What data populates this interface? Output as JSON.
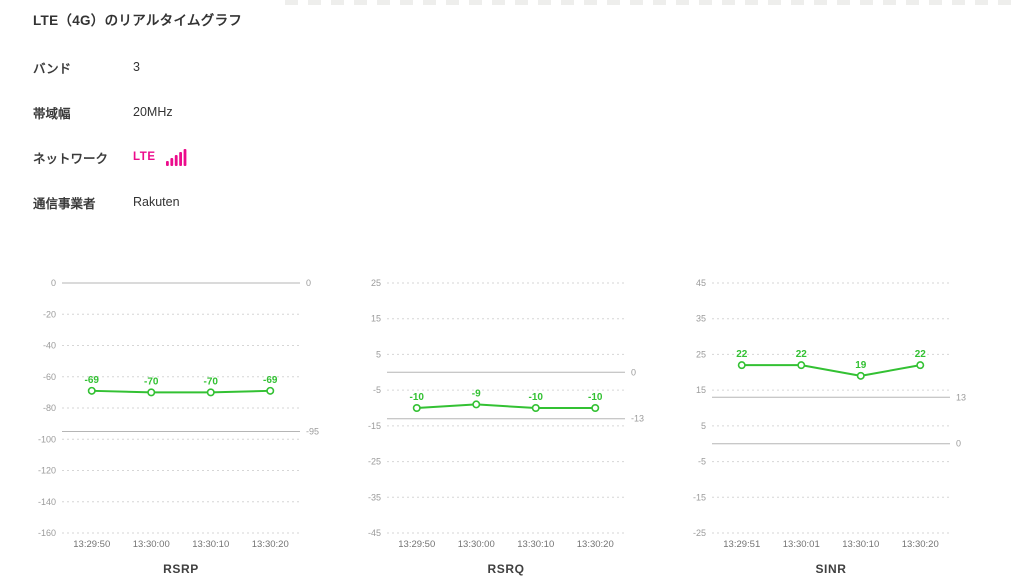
{
  "page": {
    "title": "LTE（4G）のリアルタイムグラフ"
  },
  "info": {
    "rows": [
      {
        "label": "バンド",
        "value": "3"
      },
      {
        "label": "帯域幅",
        "value": "20MHz"
      },
      {
        "label": "ネットワーク",
        "value": "LTE",
        "accent": true,
        "icon": "signal-bars-icon"
      },
      {
        "label": "通信事業者",
        "value": "Rakuten"
      }
    ]
  },
  "colors": {
    "accent_magenta": "#ec0c8c",
    "series_green": "#33c133",
    "grid_dashed": "#d6d6d6",
    "ref_line": "#b5b5b5",
    "tick_text": "#9b9b9b",
    "time_text": "#737373"
  },
  "chart_data": [
    {
      "type": "line",
      "title": "RSRP",
      "categories": [
        "13:29:50",
        "13:30:00",
        "13:30:10",
        "13:30:20"
      ],
      "values": [
        -69,
        -70,
        -70,
        -69
      ],
      "data_labels": [
        "-69",
        "-70",
        "-70",
        "-69"
      ],
      "ylim": [
        -160,
        0
      ],
      "ytick_step": 20,
      "ref_lines": [
        {
          "value": 0,
          "label": "0"
        },
        {
          "value": -95,
          "label": "-95"
        }
      ],
      "grid": "horizontal-dashed",
      "legend": "none"
    },
    {
      "type": "line",
      "title": "RSRQ",
      "categories": [
        "13:29:50",
        "13:30:00",
        "13:30:10",
        "13:30:20"
      ],
      "values": [
        -10,
        -9,
        -10,
        -10
      ],
      "data_labels": [
        "-10",
        "-9",
        "-10",
        "-10"
      ],
      "ylim": [
        -45,
        25
      ],
      "ytick_step": 10,
      "ref_lines": [
        {
          "value": 0,
          "label": "0"
        },
        {
          "value": -13,
          "label": "-13"
        }
      ],
      "grid": "horizontal-dashed",
      "legend": "none"
    },
    {
      "type": "line",
      "title": "SINR",
      "categories": [
        "13:29:51",
        "13:30:01",
        "13:30:10",
        "13:30:20"
      ],
      "values": [
        22,
        22,
        19,
        22
      ],
      "data_labels": [
        "22",
        "22",
        "19",
        "22"
      ],
      "ylim": [
        -25,
        45
      ],
      "ytick_step": 10,
      "ref_lines": [
        {
          "value": 13,
          "label": "13"
        },
        {
          "value": 0,
          "label": "0"
        }
      ],
      "grid": "horizontal-dashed",
      "legend": "none"
    }
  ]
}
